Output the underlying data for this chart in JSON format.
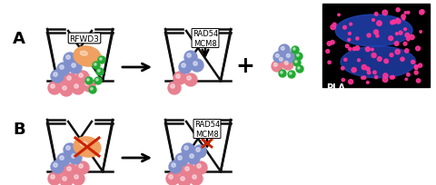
{
  "fig_width": 4.8,
  "fig_height": 2.05,
  "dpi": 100,
  "bg_color": "#ffffff",
  "label_A": "A",
  "label_B": "B",
  "pink_color": "#E88090",
  "blue_color": "#8090CC",
  "green_color": "#22AA33",
  "orange_color": "#F0A060",
  "dark_red": "#CC2200",
  "line_color": "#111111",
  "rfwd3_label": "RFWD3",
  "rad54_label": "RAD54\nMCM8",
  "pla_label": "PLA"
}
